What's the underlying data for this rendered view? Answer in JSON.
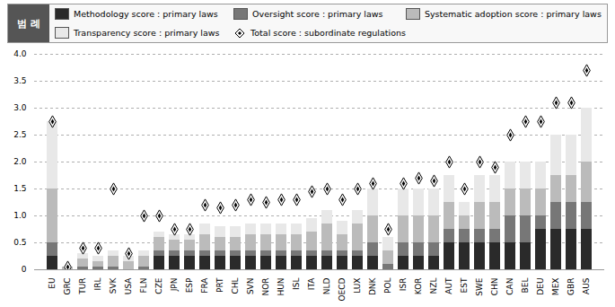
{
  "chart_data": {
    "type": "bar",
    "stacked": true,
    "legend_title": "범 례",
    "categories": [
      "EU",
      "GRC",
      "TUR",
      "IRL",
      "SVK",
      "USA",
      "FLN",
      "CZE",
      "JPN",
      "ESP",
      "FRA",
      "PRT",
      "CHL",
      "SVN",
      "NOR",
      "HUN",
      "ISL",
      "ITA",
      "NLD",
      "OECD",
      "LUX",
      "DNK",
      "POL",
      "ISR",
      "KOR",
      "NZL",
      "AUT",
      "EST",
      "SWE",
      "CHN",
      "CAN",
      "BEL",
      "DEU",
      "MEX",
      "GBR",
      "AUS"
    ],
    "series": [
      {
        "name": "Methodology score : primary laws",
        "type": "bar",
        "color": "#2a2a2a",
        "values": [
          0.25,
          0.0,
          0.0,
          0.0,
          0.0,
          0.0,
          0.0,
          0.25,
          0.25,
          0.25,
          0.25,
          0.25,
          0.25,
          0.25,
          0.25,
          0.25,
          0.25,
          0.25,
          0.25,
          0.25,
          0.25,
          0.25,
          0.0,
          0.25,
          0.25,
          0.25,
          0.5,
          0.5,
          0.5,
          0.5,
          0.5,
          0.5,
          0.75,
          0.75,
          0.75,
          0.75
        ]
      },
      {
        "name": "Oversight score : primary laws",
        "type": "bar",
        "color": "#777777",
        "values": [
          0.25,
          0.0,
          0.05,
          0.05,
          0.05,
          0.0,
          0.05,
          0.1,
          0.1,
          0.1,
          0.1,
          0.1,
          0.1,
          0.1,
          0.1,
          0.1,
          0.1,
          0.1,
          0.1,
          0.1,
          0.1,
          0.25,
          0.1,
          0.25,
          0.25,
          0.25,
          0.25,
          0.25,
          0.25,
          0.25,
          0.5,
          0.5,
          0.25,
          0.5,
          0.5,
          0.5
        ]
      },
      {
        "name": "Systematic adoption score : primary laws",
        "type": "bar",
        "color": "#bbbbbb",
        "values": [
          1.0,
          0.05,
          0.15,
          0.1,
          0.2,
          0.15,
          0.2,
          0.25,
          0.2,
          0.2,
          0.3,
          0.25,
          0.25,
          0.3,
          0.3,
          0.3,
          0.3,
          0.35,
          0.5,
          0.3,
          0.5,
          0.5,
          0.25,
          0.5,
          0.5,
          0.5,
          0.5,
          0.25,
          0.5,
          0.5,
          0.5,
          0.5,
          0.5,
          0.5,
          0.5,
          0.75
        ]
      },
      {
        "name": "Transparency score : primary laws",
        "type": "bar",
        "color": "#e8e8e8",
        "values": [
          1.25,
          0.0,
          0.1,
          0.1,
          0.1,
          0.1,
          0.1,
          0.1,
          0.1,
          0.1,
          0.2,
          0.2,
          0.2,
          0.2,
          0.2,
          0.2,
          0.2,
          0.25,
          0.25,
          0.25,
          0.25,
          0.5,
          0.25,
          0.5,
          0.5,
          0.5,
          0.5,
          0.25,
          0.5,
          0.5,
          0.5,
          0.5,
          0.5,
          0.75,
          0.75,
          1.0
        ]
      },
      {
        "name": "Total score : subordinate regulations",
        "type": "scatter",
        "marker": "diamond",
        "color": "#000000",
        "values": [
          2.75,
          0.05,
          0.4,
          0.4,
          1.5,
          0.3,
          1.0,
          1.0,
          0.75,
          0.75,
          1.2,
          1.15,
          1.2,
          1.3,
          1.25,
          1.3,
          1.3,
          1.45,
          1.5,
          1.3,
          1.5,
          1.6,
          0.75,
          1.6,
          1.7,
          1.65,
          2.0,
          1.5,
          2.0,
          1.9,
          2.5,
          2.75,
          2.75,
          3.1,
          3.1,
          3.7
        ]
      }
    ],
    "ylim": [
      0,
      4.0
    ],
    "yticks": [
      0,
      0.5,
      {
        "value": 1.0,
        "label": "1.0"
      },
      1.5,
      {
        "value": 2.0,
        "label": "2.0"
      },
      2.5,
      {
        "value": 3.0,
        "label": "3.0"
      },
      3.5,
      {
        "value": 4.0,
        "label": "4.0"
      }
    ],
    "grid": true
  }
}
